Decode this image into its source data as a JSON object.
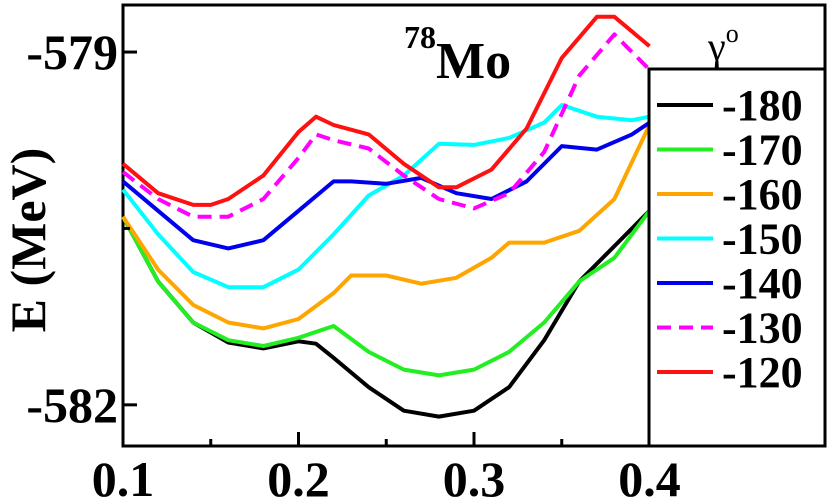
{
  "chart_data": {
    "type": "line",
    "title": "Mo",
    "title_superscript": "78",
    "xlabel": "",
    "ylabel": "E (MeV)",
    "xlim": [
      0.1,
      0.5
    ],
    "ylim": [
      -582.35,
      -578.6
    ],
    "x_ticks": [
      0.1,
      0.2,
      0.3,
      0.4
    ],
    "x_tick_labels": [
      "0.1",
      "0.2",
      "0.3",
      "0.4"
    ],
    "y_ticks": [
      -579,
      -582
    ],
    "y_tick_labels": [
      "-579",
      "-582"
    ],
    "legend_title": "γ",
    "legend_title_superscript": "o",
    "legend_position": "right",
    "series": [
      {
        "name": "-180",
        "color": "#000000",
        "dash": "solid",
        "x": [
          0.1,
          0.12,
          0.14,
          0.16,
          0.18,
          0.2,
          0.21,
          0.22,
          0.24,
          0.26,
          0.28,
          0.3,
          0.32,
          0.34,
          0.36,
          0.38,
          0.4
        ],
        "y": [
          -580.4,
          -580.95,
          -581.3,
          -581.47,
          -581.52,
          -581.46,
          -581.48,
          -581.6,
          -581.85,
          -582.05,
          -582.1,
          -582.05,
          -581.85,
          -581.45,
          -580.95,
          -580.65,
          -580.35
        ]
      },
      {
        "name": "-170",
        "color": "#22ee22",
        "dash": "solid",
        "x": [
          0.1,
          0.12,
          0.14,
          0.16,
          0.18,
          0.2,
          0.22,
          0.24,
          0.26,
          0.28,
          0.3,
          0.32,
          0.34,
          0.36,
          0.38,
          0.4
        ],
        "y": [
          -580.4,
          -580.95,
          -581.3,
          -581.45,
          -581.5,
          -581.43,
          -581.33,
          -581.55,
          -581.7,
          -581.75,
          -581.7,
          -581.55,
          -581.3,
          -580.95,
          -580.75,
          -580.35
        ]
      },
      {
        "name": "-160",
        "color": "#ffa500",
        "dash": "solid",
        "x": [
          0.1,
          0.12,
          0.14,
          0.16,
          0.18,
          0.2,
          0.22,
          0.23,
          0.25,
          0.27,
          0.29,
          0.31,
          0.32,
          0.34,
          0.36,
          0.38,
          0.4
        ],
        "y": [
          -580.4,
          -580.85,
          -581.15,
          -581.3,
          -581.35,
          -581.27,
          -581.05,
          -580.9,
          -580.9,
          -580.97,
          -580.92,
          -580.75,
          -580.62,
          -580.62,
          -580.52,
          -580.25,
          -579.62
        ]
      },
      {
        "name": "-150",
        "color": "#00ffff",
        "dash": "solid",
        "x": [
          0.1,
          0.12,
          0.14,
          0.16,
          0.18,
          0.2,
          0.22,
          0.24,
          0.26,
          0.28,
          0.3,
          0.32,
          0.34,
          0.35,
          0.37,
          0.39,
          0.4
        ],
        "y": [
          -580.17,
          -580.55,
          -580.87,
          -581.0,
          -581.0,
          -580.85,
          -580.55,
          -580.22,
          -580.05,
          -579.78,
          -579.79,
          -579.73,
          -579.6,
          -579.45,
          -579.55,
          -579.58,
          -579.55
        ]
      },
      {
        "name": "-140",
        "color": "#0000ee",
        "dash": "solid",
        "x": [
          0.1,
          0.12,
          0.14,
          0.16,
          0.18,
          0.2,
          0.22,
          0.23,
          0.25,
          0.27,
          0.29,
          0.31,
          0.33,
          0.35,
          0.37,
          0.39,
          0.4
        ],
        "y": [
          -580.1,
          -580.35,
          -580.6,
          -580.67,
          -580.6,
          -580.35,
          -580.1,
          -580.1,
          -580.12,
          -580.07,
          -580.2,
          -580.25,
          -580.1,
          -579.8,
          -579.83,
          -579.7,
          -579.6
        ]
      },
      {
        "name": "-130",
        "color": "#ff00ff",
        "dash": "dashed",
        "x": [
          0.1,
          0.12,
          0.14,
          0.16,
          0.18,
          0.2,
          0.21,
          0.22,
          0.24,
          0.26,
          0.28,
          0.3,
          0.32,
          0.34,
          0.36,
          0.38,
          0.4
        ],
        "y": [
          -580.02,
          -580.25,
          -580.4,
          -580.4,
          -580.25,
          -579.9,
          -579.7,
          -579.75,
          -579.82,
          -580.05,
          -580.25,
          -580.33,
          -580.2,
          -579.85,
          -579.2,
          -578.85,
          -579.15
        ]
      },
      {
        "name": "-120",
        "color": "#ff1111",
        "dash": "solid",
        "x": [
          0.1,
          0.12,
          0.14,
          0.15,
          0.16,
          0.18,
          0.2,
          0.21,
          0.22,
          0.24,
          0.26,
          0.28,
          0.29,
          0.31,
          0.33,
          0.35,
          0.37,
          0.38,
          0.4
        ],
        "y": [
          -579.95,
          -580.2,
          -580.3,
          -580.3,
          -580.25,
          -580.05,
          -579.68,
          -579.55,
          -579.62,
          -579.7,
          -579.95,
          -580.15,
          -580.15,
          -580.0,
          -579.65,
          -579.05,
          -578.7,
          -578.7,
          -578.95
        ]
      }
    ]
  }
}
